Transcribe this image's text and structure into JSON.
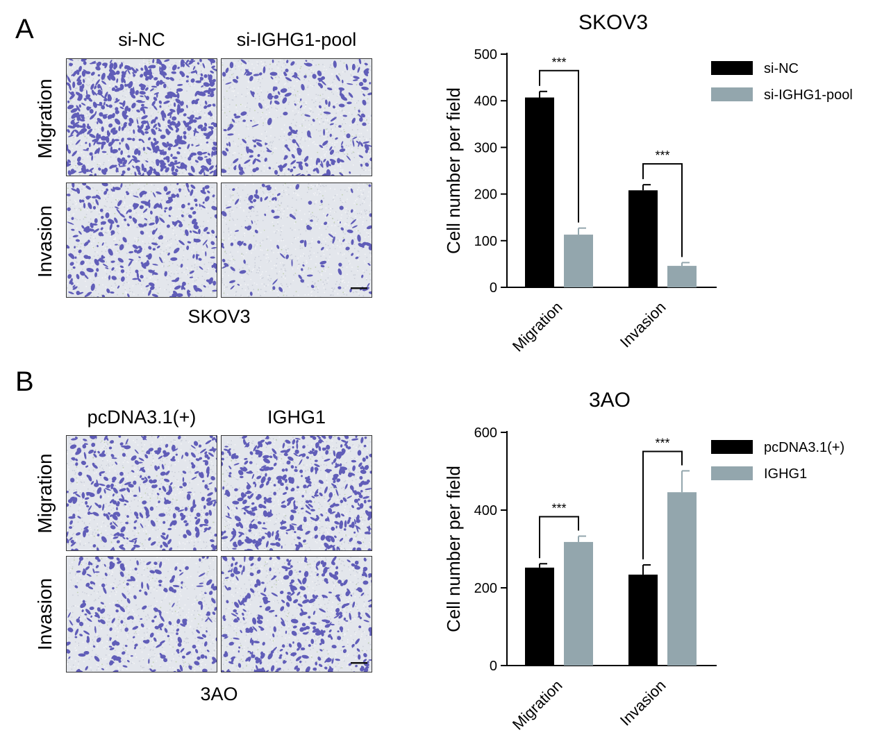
{
  "panels": [
    {
      "letter": "A",
      "columns": [
        "si-NC",
        "si-IGHG1-pool"
      ],
      "rows": [
        "Migration",
        "Invasion"
      ],
      "cell_line": "SKOV3"
    },
    {
      "letter": "B",
      "columns": [
        "pcDNA3.1(+)",
        "IGHG1"
      ],
      "rows": [
        "Migration",
        "Invasion"
      ],
      "cell_line": "3AO"
    }
  ],
  "colors": {
    "series1": "#000000",
    "series2": "#93a6ad",
    "stain": "#4a46b0"
  },
  "chart_data": [
    {
      "type": "bar",
      "title": "SKOV3",
      "ylabel": "Cell number per field",
      "xlabel": "",
      "categories": [
        "Migration",
        "Invasion"
      ],
      "series": [
        {
          "name": "si-NC",
          "values": [
            407,
            208
          ],
          "errors": [
            13,
            12
          ]
        },
        {
          "name": "si-IGHG1-pool",
          "values": [
            113,
            46
          ],
          "errors": [
            14,
            7
          ]
        }
      ],
      "ylim": [
        0,
        500
      ],
      "yticks": [
        0,
        100,
        200,
        300,
        400,
        500
      ],
      "significance": [
        "***",
        "***"
      ],
      "legend_position": "top-right",
      "grid": false
    },
    {
      "type": "bar",
      "title": "3AO",
      "ylabel": "Cell number per field",
      "xlabel": "",
      "categories": [
        "Migration",
        "Invasion"
      ],
      "series": [
        {
          "name": "pcDNA3.1(+)",
          "values": [
            252,
            234
          ],
          "errors": [
            10,
            25
          ]
        },
        {
          "name": "IGHG1",
          "values": [
            318,
            446
          ],
          "errors": [
            15,
            55
          ]
        }
      ],
      "ylim": [
        0,
        600
      ],
      "yticks": [
        0,
        200,
        400,
        600
      ],
      "significance": [
        "***",
        "***"
      ],
      "legend_position": "top-right",
      "grid": false
    }
  ]
}
